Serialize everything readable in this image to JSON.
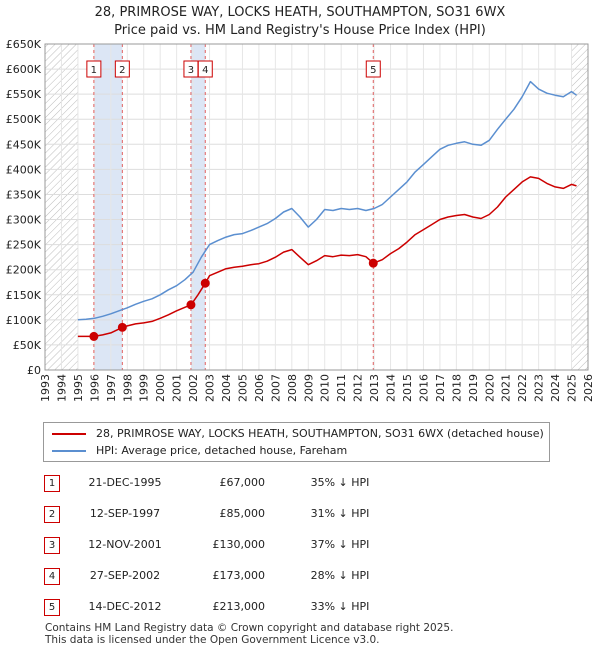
{
  "header": {
    "line1": "28, PRIMROSE WAY, LOCKS HEATH, SOUTHAMPTON, SO31 6WX",
    "line2": "Price paid vs. HM Land Registry's House Price Index (HPI)"
  },
  "colors": {
    "property": "#cc0000",
    "hpi": "#5b8fd0",
    "shade": "#dce6f5",
    "vline": "#e06060"
  },
  "legend": {
    "property_label": "28, PRIMROSE WAY, LOCKS HEATH, SOUTHAMPTON, SO31 6WX (detached house)",
    "hpi_label": "HPI: Average price, detached house, Fareham"
  },
  "transactions": [
    {
      "num": "1",
      "date": "21-DEC-1995",
      "price": "£67,000",
      "hpi": "35% ↓ HPI"
    },
    {
      "num": "2",
      "date": "12-SEP-1997",
      "price": "£85,000",
      "hpi": "31% ↓ HPI"
    },
    {
      "num": "3",
      "date": "12-NOV-2001",
      "price": "£130,000",
      "hpi": "37% ↓ HPI"
    },
    {
      "num": "4",
      "date": "27-SEP-2002",
      "price": "£173,000",
      "hpi": "28% ↓ HPI"
    },
    {
      "num": "5",
      "date": "14-DEC-2012",
      "price": "£213,000",
      "hpi": "33% ↓ HPI"
    }
  ],
  "footer": {
    "line1": "Contains HM Land Registry data © Crown copyright and database right 2025.",
    "line2": "This data is licensed under the Open Government Licence v3.0."
  },
  "chart_data": {
    "type": "line",
    "title": "Price paid vs. HM Land Registry's House Price Index (HPI)",
    "xlim": [
      1993,
      2026
    ],
    "ylim": [
      0,
      650000
    ],
    "x_ticks": [
      1993,
      1994,
      1995,
      1996,
      1997,
      1998,
      1999,
      2000,
      2001,
      2002,
      2003,
      2004,
      2005,
      2006,
      2007,
      2008,
      2009,
      2010,
      2011,
      2012,
      2013,
      2014,
      2015,
      2016,
      2017,
      2018,
      2019,
      2020,
      2021,
      2022,
      2023,
      2024,
      2025,
      2026
    ],
    "y_ticks": [
      {
        "v": 0,
        "label": "£0"
      },
      {
        "v": 50000,
        "label": "£50K"
      },
      {
        "v": 100000,
        "label": "£100K"
      },
      {
        "v": 150000,
        "label": "£150K"
      },
      {
        "v": 200000,
        "label": "£200K"
      },
      {
        "v": 250000,
        "label": "£250K"
      },
      {
        "v": 300000,
        "label": "£300K"
      },
      {
        "v": 350000,
        "label": "£350K"
      },
      {
        "v": 400000,
        "label": "£400K"
      },
      {
        "v": 450000,
        "label": "£450K"
      },
      {
        "v": 500000,
        "label": "£500K"
      },
      {
        "v": 550000,
        "label": "£550K"
      },
      {
        "v": 600000,
        "label": "£600K"
      },
      {
        "v": 650000,
        "label": "£650K"
      }
    ],
    "hatched_ranges": [
      [
        1993,
        1995.0
      ],
      [
        2025.0,
        2026
      ]
    ],
    "shaded_ranges": [
      [
        1995.97,
        1997.7
      ],
      [
        2001.87,
        2002.74
      ]
    ],
    "sales": [
      {
        "num": "1",
        "x": 1995.97,
        "y": 67000
      },
      {
        "num": "2",
        "x": 1997.7,
        "y": 85000
      },
      {
        "num": "3",
        "x": 2001.87,
        "y": 130000
      },
      {
        "num": "4",
        "x": 2002.74,
        "y": 173000
      },
      {
        "num": "5",
        "x": 2012.95,
        "y": 213000
      }
    ],
    "series": [
      {
        "name": "HPI: Average price, detached house, Fareham",
        "x": [
          1995.0,
          1995.5,
          1996.0,
          1996.5,
          1997.0,
          1997.5,
          1998.0,
          1998.5,
          1999.0,
          1999.5,
          2000.0,
          2000.5,
          2001.0,
          2001.5,
          2002.0,
          2002.5,
          2003.0,
          2003.5,
          2004.0,
          2004.5,
          2005.0,
          2005.5,
          2006.0,
          2006.5,
          2007.0,
          2007.5,
          2008.0,
          2008.5,
          2009.0,
          2009.5,
          2010.0,
          2010.5,
          2011.0,
          2011.5,
          2012.0,
          2012.5,
          2013.0,
          2013.5,
          2014.0,
          2014.5,
          2015.0,
          2015.5,
          2016.0,
          2016.5,
          2017.0,
          2017.5,
          2018.0,
          2018.5,
          2019.0,
          2019.5,
          2020.0,
          2020.5,
          2021.0,
          2021.5,
          2022.0,
          2022.5,
          2023.0,
          2023.5,
          2024.0,
          2024.5,
          2025.0,
          2025.3
        ],
        "values": [
          100000,
          101000,
          103000,
          107000,
          112000,
          118000,
          124000,
          131000,
          137000,
          142000,
          150000,
          160000,
          168000,
          180000,
          195000,
          225000,
          250000,
          258000,
          265000,
          270000,
          272000,
          278000,
          285000,
          292000,
          302000,
          315000,
          322000,
          305000,
          285000,
          300000,
          320000,
          318000,
          322000,
          320000,
          322000,
          318000,
          322000,
          330000,
          345000,
          360000,
          375000,
          395000,
          410000,
          425000,
          440000,
          448000,
          452000,
          455000,
          450000,
          448000,
          458000,
          480000,
          500000,
          520000,
          545000,
          575000,
          560000,
          552000,
          548000,
          545000,
          555000,
          548000
        ]
      },
      {
        "name": "28, PRIMROSE WAY, LOCKS HEATH, SOUTHAMPTON, SO31 6WX (detached house)",
        "x": [
          1995.0,
          1995.97,
          1996.5,
          1997.0,
          1997.7,
          1998.0,
          1998.5,
          1999.0,
          1999.5,
          2000.0,
          2000.5,
          2001.0,
          2001.5,
          2001.87,
          2002.3,
          2002.74,
          2003.0,
          2003.5,
          2004.0,
          2004.5,
          2005.0,
          2005.5,
          2006.0,
          2006.5,
          2007.0,
          2007.5,
          2008.0,
          2008.5,
          2009.0,
          2009.5,
          2010.0,
          2010.5,
          2011.0,
          2011.5,
          2012.0,
          2012.5,
          2012.95,
          2013.5,
          2014.0,
          2014.5,
          2015.0,
          2015.5,
          2016.0,
          2016.5,
          2017.0,
          2017.5,
          2018.0,
          2018.5,
          2019.0,
          2019.5,
          2020.0,
          2020.5,
          2021.0,
          2021.5,
          2022.0,
          2022.5,
          2023.0,
          2023.5,
          2024.0,
          2024.5,
          2025.0,
          2025.3
        ],
        "values": [
          67000,
          67000,
          70000,
          74000,
          85000,
          88000,
          92000,
          94000,
          97000,
          103000,
          110000,
          118000,
          125000,
          130000,
          150000,
          173000,
          188000,
          195000,
          202000,
          205000,
          207000,
          210000,
          212000,
          217000,
          225000,
          235000,
          240000,
          225000,
          210000,
          218000,
          228000,
          226000,
          229000,
          228000,
          230000,
          226000,
          213000,
          220000,
          232000,
          242000,
          255000,
          270000,
          280000,
          290000,
          300000,
          305000,
          308000,
          310000,
          305000,
          302000,
          310000,
          325000,
          345000,
          360000,
          375000,
          385000,
          382000,
          372000,
          365000,
          362000,
          370000,
          367000
        ]
      }
    ]
  }
}
